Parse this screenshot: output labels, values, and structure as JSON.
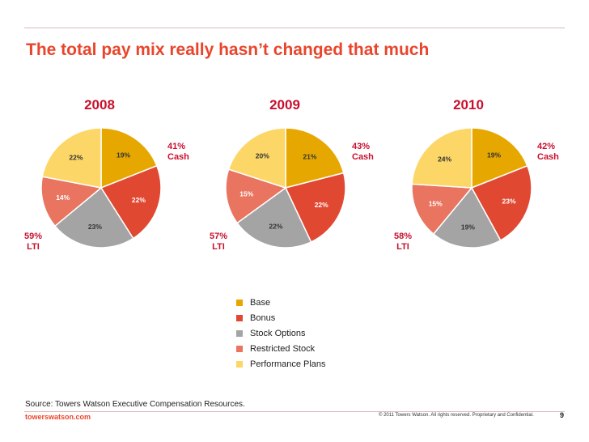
{
  "title": "The total pay mix really hasn’t changed that much",
  "colors": {
    "base": "#e6a700",
    "bonus": "#e14832",
    "stock_options": "#a4a4a4",
    "restricted_stock": "#e97460",
    "performance_plans": "#fcd666",
    "accent": "#c8102e",
    "title": "#e8452c"
  },
  "legend": [
    {
      "label": "Base",
      "color": "#e6a700"
    },
    {
      "label": "Bonus",
      "color": "#e14832"
    },
    {
      "label": "Stock Options",
      "color": "#a4a4a4"
    },
    {
      "label": "Restricted Stock",
      "color": "#e97460"
    },
    {
      "label": "Performance Plans",
      "color": "#fcd666"
    }
  ],
  "chart_data": [
    {
      "type": "pie",
      "title": "2008",
      "categories": [
        "Base",
        "Bonus",
        "Stock Options",
        "Restricted Stock",
        "Performance Plans"
      ],
      "values": [
        19,
        22,
        23,
        14,
        22
      ],
      "labels": [
        "19%",
        "22%",
        "23%",
        "14%",
        "22%"
      ],
      "cash_annotation": [
        "41%",
        "Cash"
      ],
      "lti_annotation": [
        "59%",
        "LTI"
      ]
    },
    {
      "type": "pie",
      "title": "2009",
      "categories": [
        "Base",
        "Bonus",
        "Stock Options",
        "Restricted Stock",
        "Performance Plans"
      ],
      "values": [
        21,
        22,
        22,
        15,
        20
      ],
      "labels": [
        "21%",
        "22%",
        "22%",
        "15%",
        "20%"
      ],
      "cash_annotation": [
        "43%",
        "Cash"
      ],
      "lti_annotation": [
        "57%",
        "LTI"
      ]
    },
    {
      "type": "pie",
      "title": "2010",
      "categories": [
        "Base",
        "Bonus",
        "Stock Options",
        "Restricted Stock",
        "Performance Plans"
      ],
      "values": [
        19,
        23,
        19,
        15,
        24
      ],
      "labels": [
        "19%",
        "23%",
        "19%",
        "15%",
        "24%"
      ],
      "cash_annotation": [
        "42%",
        "Cash"
      ],
      "lti_annotation": [
        "58%",
        "LTI"
      ]
    }
  ],
  "footer": {
    "source": "Source: Towers Watson Executive Compensation Resources.",
    "site": "towerswatson.com",
    "copyright": "© 2011 Towers Watson. All rights reserved. Proprietary and Confidential.",
    "page": "9"
  }
}
